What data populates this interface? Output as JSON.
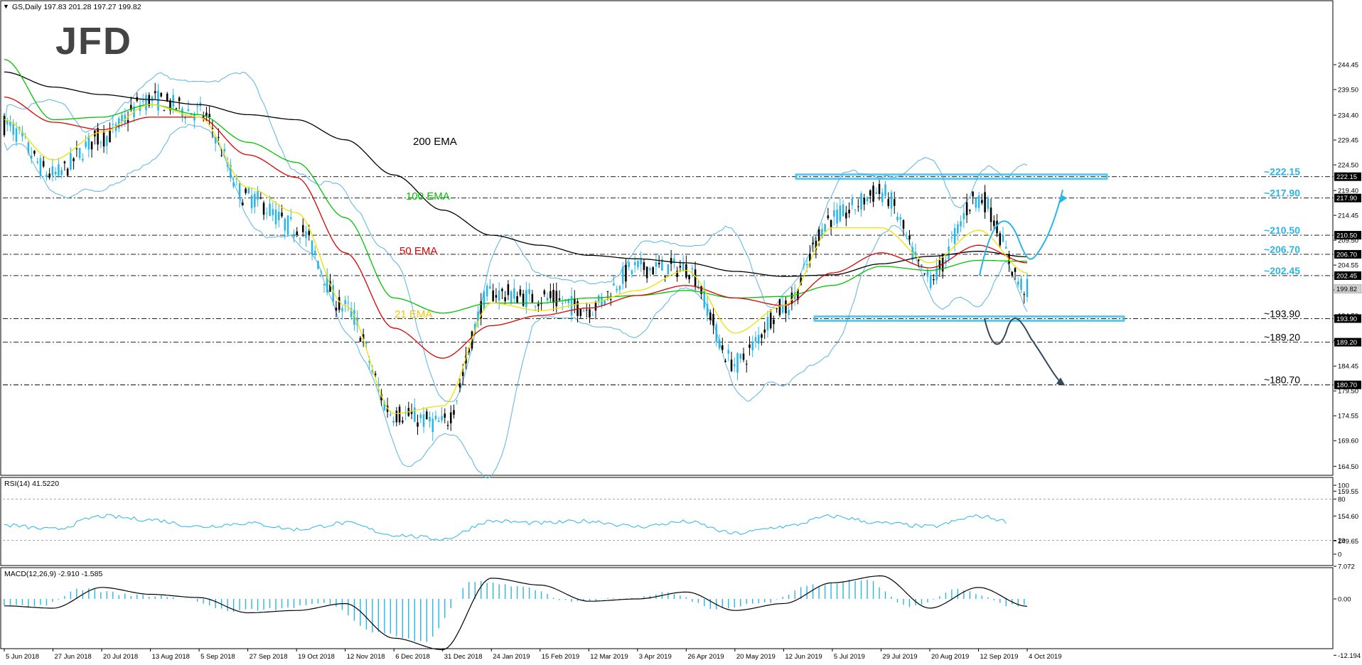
{
  "header": {
    "symbol_line": "GS,Daily  197.83 201.28 197.27 199.82",
    "rsi_label": "RSI(14) 41.5220",
    "macd_label": "MACD(12,26,9) -2.910 -1.585"
  },
  "logo": {
    "text": "JFD"
  },
  "colors": {
    "bull": "#29b6e6",
    "bear": "#000000",
    "ema200": "#000000",
    "ema100": "#00c400",
    "ema50": "#e00000",
    "ema21": "#f0e000",
    "bollinger": "#5ab4e6",
    "accent": "#29b6e6",
    "grid": "#000000"
  },
  "ema_labels": {
    "ema200": "200 EMA",
    "ema100": "100 EMA",
    "ema50": "50 EMA",
    "ema21": "21 EMA"
  },
  "price_axis": {
    "ticks": [
      "244.45",
      "239.50",
      "234.40",
      "229.45",
      "224.50",
      "219.40",
      "214.45",
      "209.50",
      "204.55",
      "199.60",
      "194.50",
      "189.55",
      "184.45",
      "179.50",
      "174.55",
      "169.60",
      "164.50",
      "159.55",
      "154.60",
      "149.65"
    ]
  },
  "levels": [
    {
      "annotation": "~222.15",
      "badge": "222.15"
    },
    {
      "annotation": "~217.90",
      "badge": "217.90"
    },
    {
      "annotation": "~210.50",
      "badge": "210.50"
    },
    {
      "annotation": "~206.70",
      "badge": "206.70"
    },
    {
      "annotation": "~202.45",
      "badge": "202.45"
    },
    {
      "annotation": "~193.90",
      "badge": "193.90"
    },
    {
      "annotation": "~189.20",
      "badge": "189.20"
    },
    {
      "annotation": "~180.70",
      "badge": "180.70"
    }
  ],
  "current_price_badge": "199.82",
  "rsi_axis": [
    "100",
    "80",
    "20",
    "0"
  ],
  "macd_axis": [
    "7.072",
    "0.00",
    "-12.194"
  ],
  "date_axis": [
    "5 Jun 2018",
    "27 Jun 2018",
    "20 Jul 2018",
    "13 Aug 2018",
    "5 Sep 2018",
    "27 Sep 2018",
    "19 Oct 2018",
    "12 Nov 2018",
    "6 Dec 2018",
    "31 Dec 2018",
    "24 Jan 2019",
    "15 Feb 2019",
    "12 Mar 2019",
    "3 Apr 2019",
    "26 Apr 2019",
    "20 May 2019",
    "12 Jun 2019",
    "5 Jul 2019",
    "29 Jul 2019",
    "20 Aug 2019",
    "12 Sep 2019",
    "4 Oct 2019"
  ],
  "chart_data": {
    "type": "line",
    "symbol": "GS",
    "timeframe": "Daily",
    "ohlc_last": {
      "open": 197.83,
      "high": 201.28,
      "low": 197.27,
      "close": 199.82
    },
    "ylim": [
      149.65,
      247.0
    ],
    "x": [
      "5 Jun 2018",
      "27 Jun 2018",
      "20 Jul 2018",
      "13 Aug 2018",
      "5 Sep 2018",
      "27 Sep 2018",
      "19 Oct 2018",
      "12 Nov 2018",
      "6 Dec 2018",
      "31 Dec 2018",
      "24 Jan 2019",
      "15 Feb 2019",
      "12 Mar 2019",
      "3 Apr 2019",
      "26 Apr 2019",
      "20 May 2019",
      "12 Jun 2019",
      "5 Jul 2019",
      "29 Jul 2019",
      "20 Aug 2019",
      "12 Sep 2019",
      "4 Oct 2019"
    ],
    "series": [
      {
        "name": "GS,Daily",
        "values": [
          232.5,
          222.5,
          230.0,
          237.5,
          235.0,
          218.0,
          212.0,
          196.0,
          175.0,
          173.0,
          199.0,
          198.0,
          196.0,
          204.0,
          204.0,
          185.0,
          196.0,
          214.0,
          219.0,
          202.0,
          218.0,
          199.82
        ]
      },
      {
        "name": "200 EMA",
        "values": [
          243.0,
          240.0,
          238.5,
          237.5,
          236.5,
          234.5,
          233.5,
          229.5,
          222.5,
          215.5,
          210.5,
          208.5,
          206.5,
          205.8,
          205.0,
          203.3,
          202.3,
          202.6,
          204.8,
          206.3,
          207.3,
          206.2
        ]
      },
      {
        "name": "100 EMA",
        "values": [
          245.5,
          233.5,
          234.0,
          236.5,
          234.5,
          229.0,
          225.0,
          214.0,
          198.0,
          195.0,
          197.0,
          197.0,
          198.0,
          198.5,
          199.5,
          198.0,
          198.3,
          200.5,
          204.3,
          203.5,
          205.5,
          205.3
        ]
      },
      {
        "name": "50 EMA",
        "values": [
          238.0,
          233.0,
          231.5,
          234.0,
          234.0,
          226.5,
          222.0,
          207.0,
          192.0,
          186.0,
          192.5,
          194.5,
          196.0,
          198.5,
          200.5,
          198.0,
          196.5,
          203.0,
          207.0,
          204.0,
          208.5,
          205.0
        ]
      },
      {
        "name": "21 EMA",
        "values": [
          233.5,
          225.5,
          231.0,
          236.5,
          234.0,
          220.0,
          215.0,
          196.5,
          175.0,
          176.5,
          197.0,
          195.5,
          197.0,
          199.5,
          203.5,
          191.0,
          196.5,
          212.0,
          212.0,
          205.0,
          211.5,
          203.0
        ]
      }
    ],
    "horizontal_levels": [
      222.15,
      217.9,
      210.5,
      206.7,
      202.45,
      193.9,
      189.2,
      180.7
    ],
    "rsi": {
      "label": "RSI(14)",
      "value": 41.522,
      "ylim": [
        0,
        100
      ],
      "levels": [
        80,
        20
      ],
      "values": [
        42,
        36,
        55,
        50,
        40,
        45,
        36,
        45,
        28,
        22,
        48,
        45,
        48,
        40,
        47,
        30,
        40,
        55,
        45,
        40,
        55,
        41.5
      ]
    },
    "macd": {
      "label": "MACD(12,26,9)",
      "macd": -2.91,
      "signal": -1.585,
      "ylim": [
        -12.194,
        7.072
      ],
      "signal_values": [
        -1.5,
        -2.0,
        2.5,
        1.0,
        0.3,
        -3.0,
        -2.5,
        -1.0,
        -8.5,
        -11.0,
        4.5,
        3.0,
        -0.5,
        0.0,
        1.5,
        -2.5,
        -1.0,
        3.5,
        5.0,
        -2.0,
        2.5,
        -1.585
      ]
    }
  }
}
